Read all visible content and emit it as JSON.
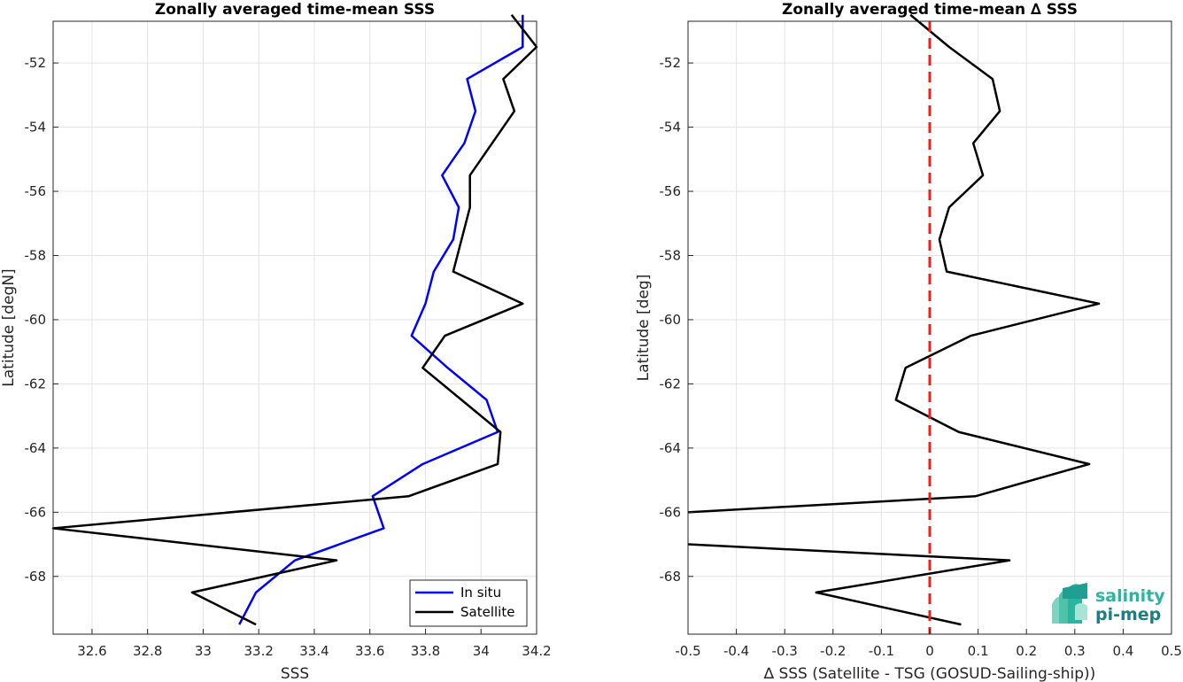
{
  "chart_data": [
    {
      "type": "line",
      "title": "Zonally averaged time-mean SSS",
      "xlabel": "SSS",
      "ylabel": "Latitude [degN]",
      "xlim": [
        32.46,
        34.2
      ],
      "ylim": [
        -69.8,
        -50.7
      ],
      "xticks": [
        32.6,
        32.8,
        33,
        33.2,
        33.4,
        33.6,
        33.8,
        34,
        34.2
      ],
      "xtick_labels": [
        "32.6",
        "32.8",
        "33",
        "33.2",
        "33.4",
        "33.6",
        "33.8",
        "34",
        "34.2"
      ],
      "yticks": [
        -52,
        -54,
        -56,
        -58,
        -60,
        -62,
        -64,
        -66,
        -68
      ],
      "ytick_labels": [
        "-52",
        "-54",
        "-56",
        "-58",
        "-60",
        "-62",
        "-64",
        "-66",
        "-68"
      ],
      "grid": true,
      "legend_position": "bottom-right",
      "series": [
        {
          "name": "In situ",
          "color": "#0000ff",
          "x": [
            34.15,
            34.15,
            33.95,
            33.98,
            33.94,
            33.86,
            33.92,
            33.9,
            33.83,
            33.8,
            33.75,
            33.88,
            34.02,
            34.06,
            33.79,
            33.61,
            33.65,
            33.33,
            33.19,
            33.13
          ],
          "y": [
            -50.5,
            -51.5,
            -52.5,
            -53.5,
            -54.5,
            -55.5,
            -56.5,
            -57.5,
            -58.5,
            -59.5,
            -60.5,
            -61.5,
            -62.5,
            -63.5,
            -64.5,
            -65.5,
            -66.5,
            -67.5,
            -68.5,
            -69.5
          ]
        },
        {
          "name": "Satellite",
          "color": "#000000",
          "x": [
            34.11,
            34.2,
            34.08,
            34.12,
            34.04,
            33.96,
            33.96,
            33.93,
            33.9,
            34.15,
            33.87,
            33.79,
            33.93,
            34.07,
            34.06,
            33.74,
            32.46,
            33.48,
            32.96,
            33.19
          ],
          "y": [
            -50.5,
            -51.5,
            -52.5,
            -53.5,
            -54.5,
            -55.5,
            -56.5,
            -57.5,
            -58.5,
            -59.5,
            -60.5,
            -61.5,
            -62.5,
            -63.5,
            -64.5,
            -65.5,
            -66.5,
            -67.5,
            -68.5,
            -69.5
          ]
        }
      ]
    },
    {
      "type": "line",
      "title": "Zonally averaged time-mean ∆ SSS",
      "xlabel": "∆ SSS (Satellite - TSG (GOSUD-Sailing-ship))",
      "ylabel": "Latitude [deg]",
      "xlim": [
        -0.5,
        0.5
      ],
      "ylim": [
        -69.8,
        -50.7
      ],
      "xticks": [
        -0.5,
        -0.4,
        -0.3,
        -0.2,
        -0.1,
        0,
        0.1,
        0.2,
        0.3,
        0.4,
        0.5
      ],
      "xtick_labels": [
        "-0.5",
        "-0.4",
        "-0.3",
        "-0.2",
        "-0.1",
        "0",
        "0.1",
        "0.2",
        "0.3",
        "0.4",
        "0.5"
      ],
      "yticks": [
        -52,
        -54,
        -56,
        -58,
        -60,
        -62,
        -64,
        -66,
        -68
      ],
      "ytick_labels": [
        "-52",
        "-54",
        "-56",
        "-58",
        "-60",
        "-62",
        "-64",
        "-66",
        "-68"
      ],
      "grid": true,
      "reference_line": {
        "x": 0,
        "color": "#e8221b",
        "style": "dashed"
      },
      "series": [
        {
          "color": "#000000",
          "x": [
            -0.04,
            0.04,
            0.13,
            0.145,
            0.09,
            0.11,
            0.04,
            0.02,
            0.035,
            0.35,
            0.085,
            -0.05,
            -0.07,
            0.06,
            0.33,
            0.095,
            -0.5,
            0.165,
            -0.235,
            0.065
          ],
          "y": [
            -50.5,
            -51.5,
            -52.5,
            -53.5,
            -54.5,
            -55.5,
            -56.5,
            -57.5,
            -58.5,
            -59.5,
            -60.5,
            -61.5,
            -62.5,
            -63.5,
            -64.5,
            -65.5,
            -66.0,
            -67.5,
            -68.5,
            -69.5
          ],
          "gap_after_index": 16,
          "resume": {
            "x": [
              -0.5
            ],
            "y": [
              -67.0
            ]
          }
        }
      ]
    }
  ],
  "logo": {
    "line1": "salinity",
    "line2": "pi-mep",
    "color1": "#2bb5a0",
    "color2": "#1a7f83"
  }
}
